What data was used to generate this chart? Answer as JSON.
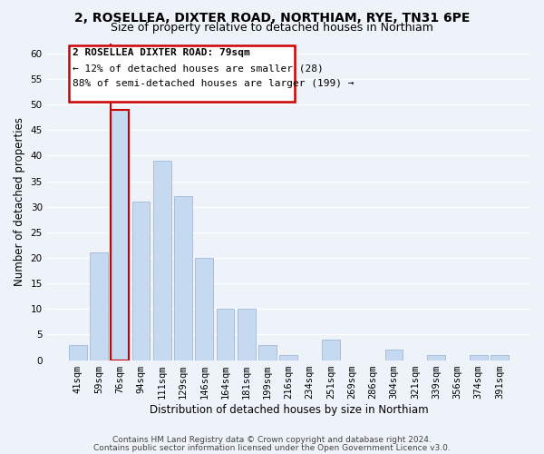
{
  "title": "2, ROSELLEA, DIXTER ROAD, NORTHIAM, RYE, TN31 6PE",
  "subtitle": "Size of property relative to detached houses in Northiam",
  "xlabel": "Distribution of detached houses by size in Northiam",
  "ylabel": "Number of detached properties",
  "bar_labels": [
    "41sqm",
    "59sqm",
    "76sqm",
    "94sqm",
    "111sqm",
    "129sqm",
    "146sqm",
    "164sqm",
    "181sqm",
    "199sqm",
    "216sqm",
    "234sqm",
    "251sqm",
    "269sqm",
    "286sqm",
    "304sqm",
    "321sqm",
    "339sqm",
    "356sqm",
    "374sqm",
    "391sqm"
  ],
  "bar_values": [
    3,
    21,
    49,
    31,
    39,
    32,
    20,
    10,
    10,
    3,
    1,
    0,
    4,
    0,
    0,
    2,
    0,
    1,
    0,
    1,
    1
  ],
  "bar_color": "#c5d9f1",
  "bar_edge_color": "#a0b8d8",
  "highlight_index": 2,
  "highlight_edge_color": "#cc0000",
  "vline_color": "#cc0000",
  "ylim": [
    0,
    62
  ],
  "yticks": [
    0,
    5,
    10,
    15,
    20,
    25,
    30,
    35,
    40,
    45,
    50,
    55,
    60
  ],
  "annotation_title": "2 ROSELLEA DIXTER ROAD: 79sqm",
  "annotation_line1": "← 12% of detached houses are smaller (28)",
  "annotation_line2": "88% of semi-detached houses are larger (199) →",
  "footer1": "Contains HM Land Registry data © Crown copyright and database right 2024.",
  "footer2": "Contains public sector information licensed under the Open Government Licence v3.0.",
  "bg_color": "#eef2f9",
  "plot_bg_color": "#eef2f9",
  "grid_color": "#ffffff",
  "title_fontsize": 10,
  "subtitle_fontsize": 9,
  "axis_label_fontsize": 8.5,
  "tick_fontsize": 7.5,
  "annotation_fontsize": 8,
  "footer_fontsize": 6.5
}
